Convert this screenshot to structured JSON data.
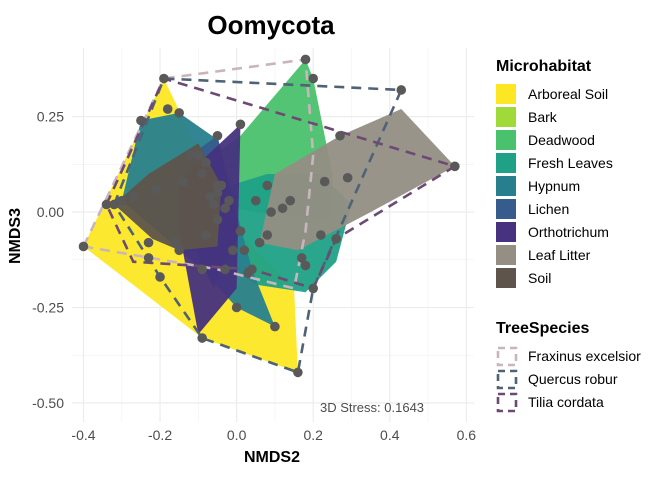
{
  "chart_data": {
    "type": "scatter",
    "title": "Oomycota",
    "xlabel": "NMDS2",
    "ylabel": "NMDS3",
    "xlim": [
      -0.43,
      0.62
    ],
    "ylim": [
      -0.55,
      0.43
    ],
    "x_ticks": [
      "-0.4",
      "-0.2",
      "0.0",
      "0.2",
      "0.4",
      "0.6"
    ],
    "y_ticks": [
      "-0.50",
      "-0.25",
      "0.00",
      "0.25"
    ],
    "grid": true,
    "annotation": "3D Stress: 0.1643",
    "legend_microhabitat": {
      "title": "Microhabitat",
      "items": [
        {
          "name": "Arboreal Soil",
          "color": "#fde725"
        },
        {
          "name": "Bark",
          "color": "#a0da39"
        },
        {
          "name": "Deadwood",
          "color": "#4ac16d"
        },
        {
          "name": "Fresh Leaves",
          "color": "#1fa187"
        },
        {
          "name": "Hypnum",
          "color": "#277f8e"
        },
        {
          "name": "Lichen",
          "color": "#365c8d"
        },
        {
          "name": "Orthotrichum",
          "color": "#46327e"
        },
        {
          "name": "Leaf Litter",
          "color": "#948e83"
        },
        {
          "name": "Soil",
          "color": "#5e544c"
        }
      ]
    },
    "legend_treespecies": {
      "title": "TreeSpecies",
      "items": [
        {
          "name": "Fraxinus excelsior",
          "color": "#c9b6bd"
        },
        {
          "name": "Quercus robur",
          "color": "#4f6276"
        },
        {
          "name": "Tilia cordata",
          "color": "#6c4a73"
        }
      ]
    },
    "hull_polygons": [
      {
        "group": "Arboreal Soil",
        "color": "#fde725",
        "points": [
          [
            -0.4,
            -0.09
          ],
          [
            -0.19,
            0.35
          ],
          [
            0.0,
            -0.05
          ],
          [
            0.15,
            -0.2
          ],
          [
            0.16,
            -0.42
          ],
          [
            -0.09,
            -0.33
          ]
        ]
      },
      {
        "group": "Deadwood",
        "color": "#4ac16d",
        "points": [
          [
            -0.2,
            0.05
          ],
          [
            0.01,
            0.2
          ],
          [
            0.18,
            0.4
          ],
          [
            0.2,
            0.35
          ],
          [
            0.25,
            0.1
          ],
          [
            0.25,
            -0.02
          ],
          [
            0.05,
            0.0
          ]
        ]
      },
      {
        "group": "Fresh Leaves",
        "color": "#1fa187",
        "points": [
          [
            -0.08,
            0.05
          ],
          [
            0.08,
            0.1
          ],
          [
            0.22,
            0.1
          ],
          [
            0.3,
            0.02
          ],
          [
            0.26,
            -0.13
          ],
          [
            0.18,
            -0.21
          ],
          [
            0.05,
            -0.19
          ],
          [
            -0.08,
            -0.1
          ]
        ]
      },
      {
        "group": "Hypnum",
        "color": "#277f8e",
        "points": [
          [
            -0.3,
            0.03
          ],
          [
            -0.25,
            0.24
          ],
          [
            -0.15,
            0.26
          ],
          [
            -0.05,
            0.19
          ],
          [
            0.04,
            -0.15
          ],
          [
            0.1,
            -0.3
          ],
          [
            0.0,
            -0.25
          ],
          [
            -0.09,
            -0.15
          ]
        ]
      },
      {
        "group": "Lichen",
        "color": "#365c8d",
        "points": [
          [
            -0.12,
            0.15
          ],
          [
            -0.05,
            0.2
          ],
          [
            0.01,
            -0.05
          ],
          [
            -0.06,
            -0.2
          ],
          [
            -0.13,
            -0.05
          ]
        ]
      },
      {
        "group": "Orthotrichum",
        "color": "#46327e",
        "points": [
          [
            -0.15,
            0.08
          ],
          [
            0.01,
            0.23
          ],
          [
            0.0,
            -0.2
          ],
          [
            -0.1,
            -0.32
          ],
          [
            -0.15,
            -0.05
          ]
        ]
      },
      {
        "group": "Leaf Litter",
        "color": "#948e83",
        "points": [
          [
            0.1,
            0.1
          ],
          [
            0.27,
            0.2
          ],
          [
            0.43,
            0.27
          ],
          [
            0.57,
            0.12
          ],
          [
            0.35,
            0.0
          ],
          [
            0.16,
            -0.1
          ],
          [
            0.06,
            -0.08
          ]
        ]
      },
      {
        "group": "Soil",
        "color": "#5e544c",
        "points": [
          [
            -0.32,
            0.02
          ],
          [
            -0.23,
            0.1
          ],
          [
            -0.1,
            0.18
          ],
          [
            -0.04,
            0.07
          ],
          [
            -0.05,
            -0.09
          ],
          [
            -0.15,
            -0.1
          ],
          [
            -0.22,
            -0.07
          ]
        ]
      }
    ],
    "tree_hulls": [
      {
        "group": "Fraxinus excelsior",
        "color": "#c9b6bd",
        "points": [
          [
            -0.4,
            -0.09
          ],
          [
            -0.19,
            0.35
          ],
          [
            0.18,
            0.4
          ],
          [
            0.2,
            0.15
          ],
          [
            0.18,
            -0.05
          ],
          [
            0.15,
            -0.2
          ],
          [
            -0.05,
            -0.15
          ]
        ]
      },
      {
        "group": "Quercus robur",
        "color": "#4f6276",
        "points": [
          [
            -0.32,
            0.02
          ],
          [
            -0.19,
            0.35
          ],
          [
            0.43,
            0.32
          ],
          [
            0.2,
            -0.2
          ],
          [
            0.16,
            -0.42
          ],
          [
            -0.09,
            -0.33
          ],
          [
            -0.2,
            -0.17
          ]
        ]
      },
      {
        "group": "Tilia cordata",
        "color": "#6c4a73",
        "points": [
          [
            -0.34,
            0.02
          ],
          [
            -0.19,
            0.35
          ],
          [
            0.57,
            0.12
          ],
          [
            0.26,
            -0.07
          ],
          [
            0.2,
            -0.2
          ],
          [
            0.04,
            -0.15
          ],
          [
            -0.27,
            -0.13
          ]
        ]
      }
    ],
    "points": [
      [
        -0.4,
        -0.09
      ],
      [
        -0.19,
        0.35
      ],
      [
        0.18,
        0.4
      ],
      [
        0.43,
        0.32
      ],
      [
        0.57,
        0.12
      ],
      [
        0.27,
        0.2
      ],
      [
        0.16,
        -0.42
      ],
      [
        -0.09,
        -0.33
      ],
      [
        -0.32,
        0.02
      ],
      [
        -0.34,
        0.02
      ],
      [
        -0.25,
        0.24
      ],
      [
        -0.18,
        0.27
      ],
      [
        -0.15,
        0.26
      ],
      [
        -0.05,
        0.2
      ],
      [
        0.01,
        0.23
      ],
      [
        -0.12,
        0.15
      ],
      [
        -0.1,
        0.15
      ],
      [
        -0.08,
        0.13
      ],
      [
        -0.05,
        0.07
      ],
      [
        -0.09,
        0.1
      ],
      [
        -0.07,
        0.04
      ],
      [
        -0.04,
        0.07
      ],
      [
        -0.06,
        0.02
      ],
      [
        -0.05,
        0.05
      ],
      [
        -0.02,
        0.03
      ],
      [
        -0.03,
        0.01
      ],
      [
        -0.05,
        -0.02
      ],
      [
        -0.08,
        -0.06
      ],
      [
        -0.14,
        0.08
      ],
      [
        -0.21,
        0.06
      ],
      [
        -0.27,
        0.04
      ],
      [
        -0.3,
        0.03
      ],
      [
        -0.23,
        -0.08
      ],
      [
        -0.2,
        -0.17
      ],
      [
        -0.23,
        -0.12
      ],
      [
        -0.15,
        -0.1
      ],
      [
        -0.16,
        -0.08
      ],
      [
        -0.09,
        -0.15
      ],
      [
        -0.03,
        -0.15
      ],
      [
        -0.01,
        -0.1
      ],
      [
        0.02,
        -0.1
      ],
      [
        0.03,
        -0.16
      ],
      [
        0.04,
        -0.15
      ],
      [
        0.01,
        -0.05
      ],
      [
        0.06,
        -0.08
      ],
      [
        0.08,
        0.07
      ],
      [
        0.05,
        0.03
      ],
      [
        0.09,
        0.0
      ],
      [
        0.12,
        0.01
      ],
      [
        0.14,
        0.03
      ],
      [
        0.17,
        -0.12
      ],
      [
        0.18,
        -0.14
      ],
      [
        0.2,
        -0.2
      ],
      [
        0.26,
        -0.07
      ],
      [
        0.23,
        0.08
      ],
      [
        0.29,
        0.09
      ],
      [
        0.22,
        -0.06
      ],
      [
        0.1,
        -0.3
      ],
      [
        0.0,
        -0.25
      ],
      [
        0.08,
        -0.06
      ],
      [
        0.2,
        0.35
      ]
    ]
  }
}
